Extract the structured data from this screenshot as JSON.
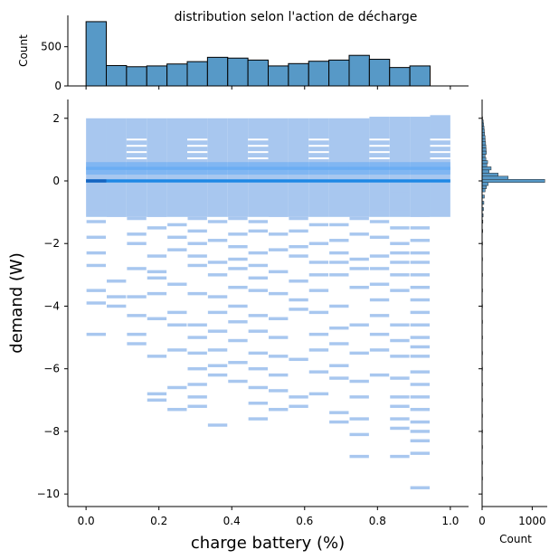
{
  "chart_data": {
    "type": "heatmap",
    "title": "distribution selon l'action de décharge",
    "xlabel": "charge battery (%)",
    "ylabel": "demand (W)",
    "xlim": [
      -0.05,
      1.05
    ],
    "ylim": [
      -10.4,
      2.6
    ],
    "x_ticks": [
      0.0,
      0.2,
      0.4,
      0.6,
      0.8,
      1.0
    ],
    "x_tick_labels": [
      "0.0",
      "0.2",
      "0.4",
      "0.6",
      "0.8",
      "1.0"
    ],
    "y_ticks": [
      2,
      0,
      -2,
      -4,
      -6,
      -8,
      -10
    ],
    "y_tick_labels": [
      "2",
      "0",
      "−2",
      "−4",
      "−6",
      "−8",
      "−10"
    ],
    "x_bin_edges": [
      0.0,
      0.05556,
      0.11111,
      0.16667,
      0.22222,
      0.27778,
      0.33333,
      0.38889,
      0.44444,
      0.5,
      0.55556,
      0.61111,
      0.66667,
      0.72222,
      0.77778,
      0.83333,
      0.88889,
      0.94444,
      1.0
    ],
    "colors": {
      "hist_bar": "#5799c7",
      "cell_light": "#a8c7ef",
      "cell_mid": "#5ea7f4",
      "cell_dark": "#1e88e5",
      "cell_darkest": "#1565c0"
    },
    "marginal_x": {
      "ylabel": "Count",
      "ylim": [
        0,
        900
      ],
      "y_ticks": [
        0,
        500
      ],
      "y_tick_labels": [
        "0",
        "500"
      ],
      "counts": [
        820,
        260,
        245,
        255,
        280,
        310,
        365,
        355,
        330,
        255,
        285,
        315,
        330,
        390,
        340,
        235,
        255
      ]
    },
    "marginal_y": {
      "xlabel": "Count",
      "xlim": [
        0,
        1300
      ],
      "x_ticks": [
        0,
        1000
      ],
      "x_tick_labels": [
        "0",
        "1000"
      ],
      "bins": [
        {
          "y": 2.0,
          "count": 10
        },
        {
          "y": 1.9,
          "count": 22
        },
        {
          "y": 1.8,
          "count": 30
        },
        {
          "y": 1.7,
          "count": 38
        },
        {
          "y": 1.6,
          "count": 45
        },
        {
          "y": 1.5,
          "count": 50
        },
        {
          "y": 1.4,
          "count": 58
        },
        {
          "y": 1.3,
          "count": 62
        },
        {
          "y": 1.2,
          "count": 70
        },
        {
          "y": 1.1,
          "count": 75
        },
        {
          "y": 1.0,
          "count": 80
        },
        {
          "y": 0.9,
          "count": 85
        },
        {
          "y": 0.8,
          "count": 60
        },
        {
          "y": 0.7,
          "count": 75
        },
        {
          "y": 0.6,
          "count": 110
        },
        {
          "y": 0.5,
          "count": 95
        },
        {
          "y": 0.4,
          "count": 180
        },
        {
          "y": 0.3,
          "count": 140
        },
        {
          "y": 0.2,
          "count": 320
        },
        {
          "y": 0.1,
          "count": 520
        },
        {
          "y": 0.0,
          "count": 1250
        },
        {
          "y": -0.1,
          "count": 120
        },
        {
          "y": -0.2,
          "count": 85
        },
        {
          "y": -0.3,
          "count": 60
        },
        {
          "y": -0.5,
          "count": 45
        },
        {
          "y": -0.7,
          "count": 35
        },
        {
          "y": -0.9,
          "count": 28
        },
        {
          "y": -1.1,
          "count": 20
        },
        {
          "y": -1.3,
          "count": 15
        },
        {
          "y": -1.6,
          "count": 12
        },
        {
          "y": -2.0,
          "count": 9
        },
        {
          "y": -2.5,
          "count": 7
        },
        {
          "y": -3.0,
          "count": 6
        },
        {
          "y": -3.5,
          "count": 5
        },
        {
          "y": -4.0,
          "count": 5
        },
        {
          "y": -4.5,
          "count": 4
        },
        {
          "y": -5.0,
          "count": 4
        },
        {
          "y": -5.5,
          "count": 3
        },
        {
          "y": -6.0,
          "count": 3
        },
        {
          "y": -6.5,
          "count": 3
        },
        {
          "y": -7.0,
          "count": 2
        },
        {
          "y": -7.5,
          "count": 2
        },
        {
          "y": -8.0,
          "count": 2
        },
        {
          "y": -8.5,
          "count": 2
        },
        {
          "y": -9.0,
          "count": 1
        },
        {
          "y": -9.5,
          "count": 1
        }
      ]
    },
    "joint_cells": [
      {
        "col": 0,
        "ys": [
          -0.5,
          -0.9,
          -1.3,
          -1.8,
          -2.3,
          -2.7,
          -3.5,
          -3.9,
          -4.9
        ]
      },
      {
        "col": 1,
        "ys": [
          -1.1,
          -3.2,
          -3.7,
          -4.0
        ]
      },
      {
        "col": 2,
        "ys": [
          -0.5,
          -0.9,
          -1.2,
          -1.7,
          -2.0,
          -2.8,
          -3.7,
          -4.3,
          -4.9,
          -5.2
        ]
      },
      {
        "col": 3,
        "ys": [
          -0.3,
          -0.7,
          -1.1,
          -1.5,
          -2.4,
          -2.9,
          -3.1,
          -3.6,
          -4.4,
          -5.6,
          -6.8,
          -7.0
        ]
      },
      {
        "col": 4,
        "ys": [
          -0.8,
          -1.4,
          -1.8,
          -2.2,
          -3.3,
          -4.2,
          -4.6,
          -5.4,
          -6.6,
          -7.3
        ]
      },
      {
        "col": 5,
        "ys": [
          -0.6,
          -1.2,
          -1.6,
          -2.0,
          -2.4,
          -2.7,
          -3.6,
          -4.6,
          -5.0,
          -5.5,
          -6.0,
          -6.5,
          -6.9,
          -7.2
        ]
      },
      {
        "col": 6,
        "ys": [
          -0.7,
          -1.3,
          -1.9,
          -2.6,
          -3.0,
          -3.7,
          -4.2,
          -4.8,
          -5.4,
          -5.9,
          -6.2,
          -7.8
        ]
      },
      {
        "col": 7,
        "ys": [
          -0.6,
          -1.2,
          -1.7,
          -2.1,
          -2.5,
          -2.8,
          -3.4,
          -4.0,
          -4.5,
          -5.1,
          -5.8,
          -6.4
        ]
      },
      {
        "col": 8,
        "ys": [
          -0.8,
          -1.3,
          -1.6,
          -2.3,
          -2.7,
          -3.1,
          -3.5,
          -4.3,
          -4.8,
          -5.5,
          -6.0,
          -6.6,
          -7.1,
          -7.6
        ]
      },
      {
        "col": 9,
        "ys": [
          -0.5,
          -1.1,
          -1.7,
          -2.2,
          -2.9,
          -3.6,
          -4.4,
          -5.0,
          -5.6,
          -6.2,
          -6.7,
          -7.3
        ]
      },
      {
        "col": 10,
        "ys": [
          -0.9,
          -1.2,
          -1.6,
          -2.1,
          -2.4,
          -3.2,
          -3.8,
          -4.1,
          -5.7,
          -6.9,
          -7.2
        ]
      },
      {
        "col": 11,
        "ys": [
          -0.6,
          -1.0,
          -1.4,
          -2.0,
          -2.6,
          -3.0,
          -3.5,
          -4.2,
          -4.9,
          -5.4,
          -6.1,
          -6.8
        ]
      },
      {
        "col": 12,
        "ys": [
          -1.0,
          -1.4,
          -1.9,
          -2.3,
          -2.6,
          -3.0,
          -4.0,
          -4.7,
          -5.2,
          -5.9,
          -6.3,
          -7.4,
          -7.7
        ]
      },
      {
        "col": 13,
        "ys": [
          -0.6,
          -1.2,
          -1.7,
          -2.5,
          -2.8,
          -3.4,
          -4.6,
          -5.5,
          -6.4,
          -6.9,
          -7.6,
          -8.1,
          -8.8
        ]
      },
      {
        "col": 14,
        "ys": [
          -0.9,
          -1.3,
          -1.8,
          -2.4,
          -2.8,
          -3.3,
          -3.8,
          -4.3,
          -4.9,
          -5.4,
          -6.2
        ]
      },
      {
        "col": 15,
        "ys": [
          -0.4,
          -0.9,
          -1.5,
          -2.0,
          -2.3,
          -2.6,
          -3.0,
          -3.5,
          -4.6,
          -5.1,
          -5.6,
          -6.3,
          -6.9,
          -7.2,
          -7.6,
          -7.9,
          -8.8
        ]
      },
      {
        "col": 16,
        "ys": [
          -0.6,
          -1.1,
          -1.5,
          -1.9,
          -2.3,
          -2.6,
          -3.0,
          -3.4,
          -3.8,
          -4.2,
          -4.6,
          -5.0,
          -5.3,
          -5.6,
          -6.1,
          -6.5,
          -6.9,
          -7.3,
          -7.7,
          -8.0,
          -8.3,
          -8.7,
          -9.8
        ]
      }
    ]
  }
}
